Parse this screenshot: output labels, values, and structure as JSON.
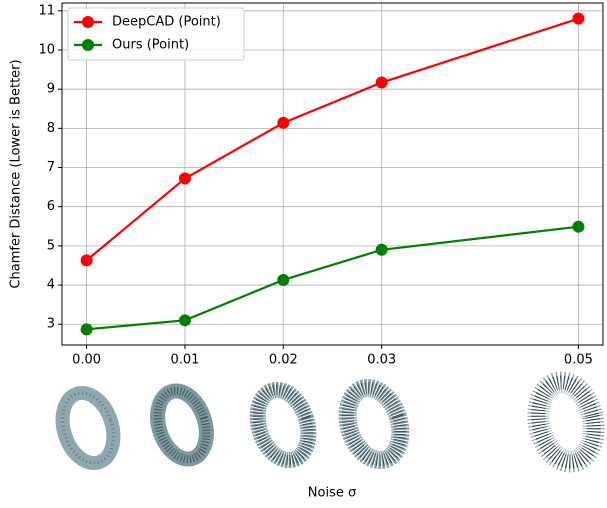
{
  "chart_data": {
    "type": "line",
    "x_label": "Noise σ",
    "y_label": "Chamfer Distance (Lower is Better)",
    "x": [
      0,
      0.01,
      0.02,
      0.03,
      0.05
    ],
    "series": [
      {
        "name": "DeepCAD (Point)",
        "color": "#ff0000",
        "values": [
          4.63,
          6.72,
          8.14,
          9.17,
          10.8
        ]
      },
      {
        "name": "Ours (Point)",
        "color": "#008000",
        "values": [
          2.87,
          3.1,
          4.13,
          4.9,
          5.49
        ]
      }
    ],
    "xlim": [
      -0.0025,
      0.0525
    ],
    "ylim": [
      2.47,
      11.2
    ],
    "xticks": [
      {
        "value": 0,
        "label": "0.00"
      },
      0.01,
      0.02,
      0.03,
      0.05
    ],
    "yticks": [
      3,
      4,
      5,
      6,
      7,
      8,
      9,
      10,
      11
    ],
    "grid": true,
    "legend": "upper-left"
  }
}
